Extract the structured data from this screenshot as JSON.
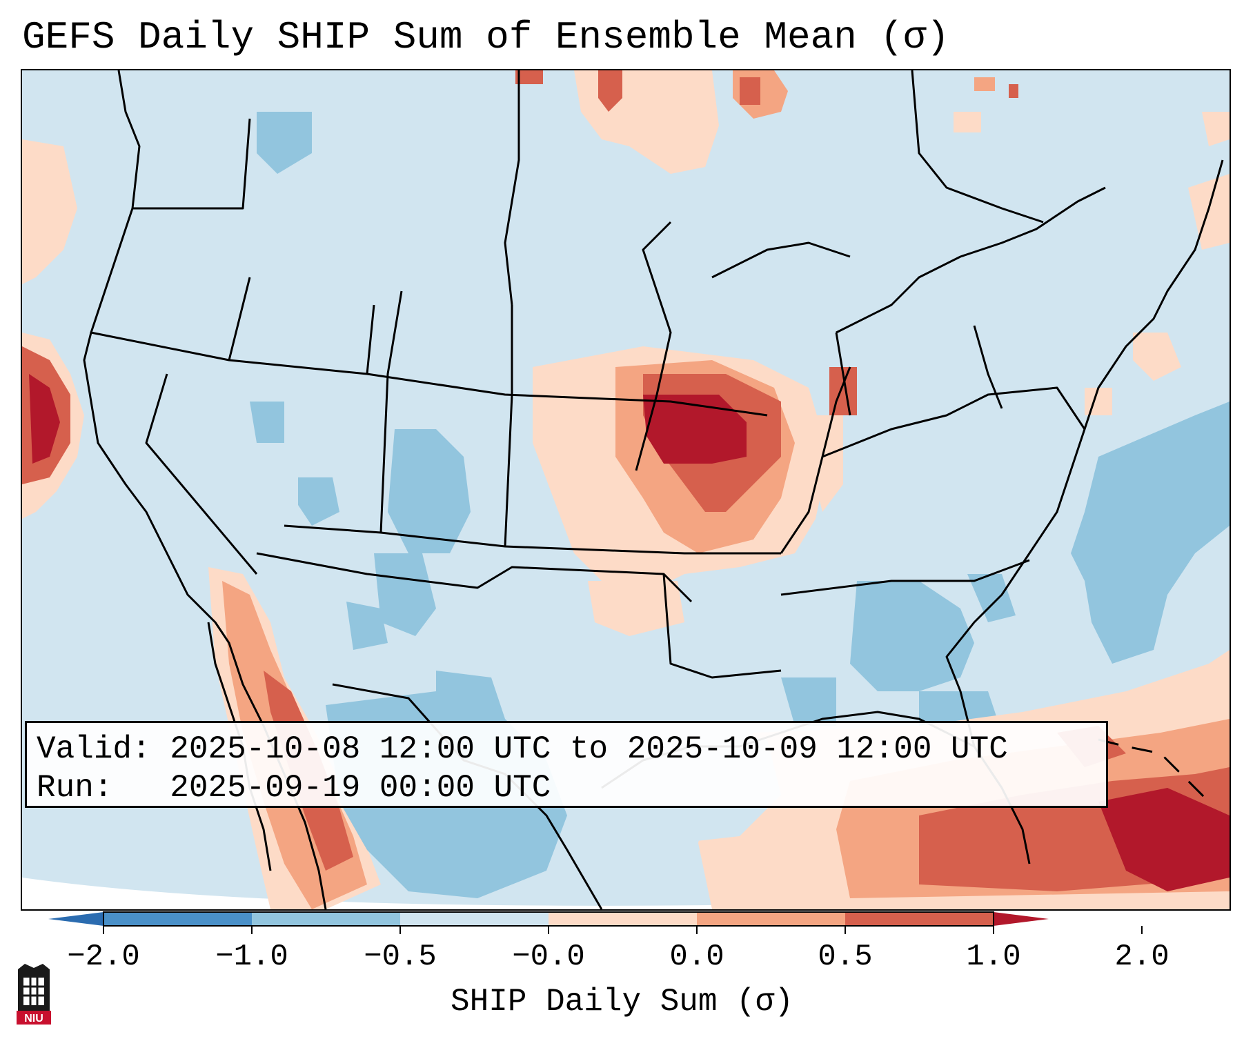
{
  "title": "GEFS Daily SHIP Sum of Ensemble Mean (σ)",
  "info": {
    "valid_label": "Valid:",
    "valid_value": "2025-10-08 12:00 UTC to 2025-10-09 12:00 UTC",
    "run_label": "Run:",
    "run_value": "2025-09-19 00:00 UTC"
  },
  "colorbar": {
    "label": "SHIP Daily Sum (σ)",
    "ticks": [
      "−2.0",
      "−1.0",
      "−0.5",
      "−0.0",
      "0.0",
      "0.5",
      "1.0",
      "2.0"
    ],
    "colors": {
      "below_min": "#2b6cb0",
      "bin_neg2_neg1": "#4a90c8",
      "bin_neg1_neg05": "#92c5de",
      "bin_neg05_0": "#d1e5f0",
      "bin_0_05": "#fddbc7",
      "bin_05_1": "#f4a582",
      "bin_1_2": "#d6604d",
      "above_max": "#b2182b"
    }
  },
  "logo": {
    "text": "NIU",
    "color": "#c8102e"
  }
}
